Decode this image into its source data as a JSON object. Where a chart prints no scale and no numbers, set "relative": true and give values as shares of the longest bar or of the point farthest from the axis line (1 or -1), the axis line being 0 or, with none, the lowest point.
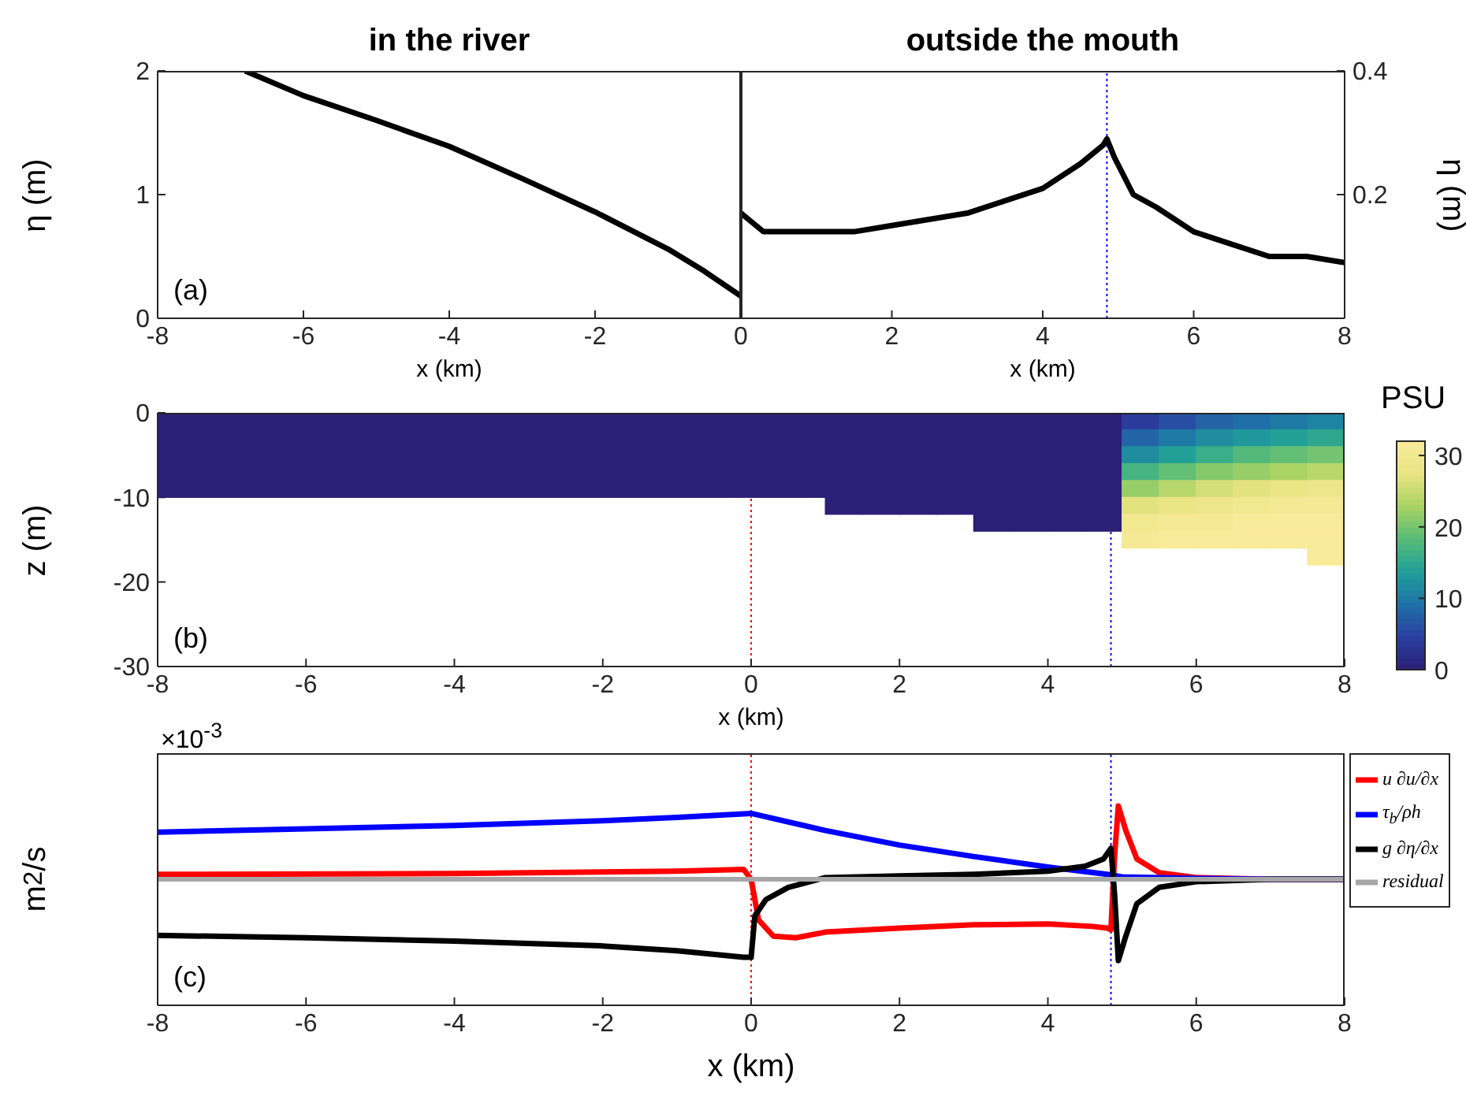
{
  "chart_data": [
    {
      "type": "line",
      "title": "in the river",
      "xlabel": "x (km)",
      "ylabel": "η (m)",
      "annotations": [
        "(a)"
      ],
      "xlim": [
        -8,
        0
      ],
      "xticks": [
        -8,
        -6,
        -4,
        -2
      ],
      "ylim": [
        0,
        2
      ],
      "yticks": [
        0,
        1,
        2
      ],
      "series": [
        {
          "color": "#000000",
          "x": [
            -6.8,
            -6,
            -5,
            -4,
            -3,
            -2,
            -1,
            -0.5,
            0
          ],
          "values": [
            2,
            1.8,
            1.6,
            1.39,
            1.13,
            0.86,
            0.56,
            0.38,
            0.18
          ]
        }
      ]
    },
    {
      "type": "line",
      "title": "outside the mouth",
      "xlabel": "x (km)",
      "y2label": "η (m)",
      "xlim": [
        0,
        8
      ],
      "xticks": [
        0,
        2,
        4,
        6,
        8
      ],
      "y2lim": [
        0,
        0.4
      ],
      "y2ticks": [
        0.2,
        0.4
      ],
      "ref_lines": [
        {
          "axis": "x",
          "value": 4.85,
          "color": "#0000ff",
          "line_style": "dotted"
        }
      ],
      "series": [
        {
          "color": "#000000",
          "axis": "y2",
          "x": [
            0,
            0.3,
            0.8,
            1.5,
            2,
            3,
            4,
            4.5,
            4.8,
            4.85,
            4.95,
            5.2,
            5.5,
            6,
            6.5,
            7,
            7.5,
            8
          ],
          "values": [
            0.17,
            0.14,
            0.14,
            0.14,
            0.15,
            0.17,
            0.21,
            0.25,
            0.28,
            0.29,
            0.26,
            0.2,
            0.18,
            0.14,
            0.12,
            0.1,
            0.1,
            0.09
          ]
        }
      ]
    },
    {
      "type": "scatter",
      "marker": "square",
      "xlabel": "x (km)",
      "ylabel": "z (m)",
      "clabel": "PSU",
      "annotations": [
        "(b)"
      ],
      "xlim": [
        -8,
        8
      ],
      "xticks": [
        -8,
        -6,
        -4,
        -2,
        0,
        2,
        4,
        6,
        8
      ],
      "ylim": [
        -30,
        0
      ],
      "yticks": [
        -30,
        -20,
        -10,
        0
      ],
      "clim": [
        0,
        32
      ],
      "cticks": [
        0,
        10,
        20,
        30
      ],
      "ref_lines": [
        {
          "axis": "x",
          "value": 0,
          "color": "#ff0000",
          "line_style": "dotted"
        },
        {
          "axis": "x",
          "value": 4.85,
          "color": "#0000ff",
          "line_style": "dotted"
        }
      ],
      "x": [
        -7.75,
        -7.75,
        -7.75,
        -7.75,
        -7.75,
        -7.25,
        -7.25,
        -7.25,
        -7.25,
        -7.25,
        -6.75,
        -6.75,
        -6.75,
        -6.75,
        -6.75,
        -6.25,
        -6.25,
        -6.25,
        -6.25,
        -6.25,
        -5.75,
        -5.75,
        -5.75,
        -5.75,
        -5.75,
        -5.25,
        -5.25,
        -5.25,
        -5.25,
        -5.25,
        -4.75,
        -4.75,
        -4.75,
        -4.75,
        -4.75,
        -4.25,
        -4.25,
        -4.25,
        -4.25,
        -4.25,
        -3.75,
        -3.75,
        -3.75,
        -3.75,
        -3.75,
        -3.25,
        -3.25,
        -3.25,
        -3.25,
        -3.25,
        -2.75,
        -2.75,
        -2.75,
        -2.75,
        -2.75,
        -2.25,
        -2.25,
        -2.25,
        -2.25,
        -2.25,
        -1.75,
        -1.75,
        -1.75,
        -1.75,
        -1.75,
        -1.25,
        -1.25,
        -1.25,
        -1.25,
        -1.25,
        -0.75,
        -0.75,
        -0.75,
        -0.75,
        -0.75,
        -0.25,
        -0.25,
        -0.25,
        -0.25,
        -0.25,
        0.25,
        0.25,
        0.25,
        0.25,
        0.25,
        0.75,
        0.75,
        0.75,
        0.75,
        0.75,
        1.25,
        1.25,
        1.25,
        1.25,
        1.25,
        1.25,
        1.75,
        1.75,
        1.75,
        1.75,
        1.75,
        1.75,
        2.25,
        2.25,
        2.25,
        2.25,
        2.25,
        2.25,
        2.75,
        2.75,
        2.75,
        2.75,
        2.75,
        2.75,
        3.25,
        3.25,
        3.25,
        3.25,
        3.25,
        3.25,
        3.25,
        3.75,
        3.75,
        3.75,
        3.75,
        3.75,
        3.75,
        3.75,
        4.25,
        4.25,
        4.25,
        4.25,
        4.25,
        4.25,
        4.25,
        4.75,
        4.75,
        4.75,
        4.75,
        4.75,
        4.75,
        4.75,
        5.25,
        5.25,
        5.25,
        5.25,
        5.25,
        5.25,
        5.25,
        5.25,
        5.75,
        5.75,
        5.75,
        5.75,
        5.75,
        5.75,
        5.75,
        5.75,
        6.25,
        6.25,
        6.25,
        6.25,
        6.25,
        6.25,
        6.25,
        6.25,
        6.75,
        6.75,
        6.75,
        6.75,
        6.75,
        6.75,
        6.75,
        6.75,
        7.25,
        7.25,
        7.25,
        7.25,
        7.25,
        7.25,
        7.25,
        7.25,
        7.75,
        7.75,
        7.75,
        7.75,
        7.75,
        7.75,
        7.75,
        7.75,
        7.75
      ],
      "values": [
        -1,
        -3,
        -5,
        -7,
        -9,
        -1,
        -3,
        -5,
        -7,
        -9,
        -1,
        -3,
        -5,
        -7,
        -9,
        -1,
        -3,
        -5,
        -7,
        -9,
        -1,
        -3,
        -5,
        -7,
        -9,
        -1,
        -3,
        -5,
        -7,
        -9,
        -1,
        -3,
        -5,
        -7,
        -9,
        -1,
        -3,
        -5,
        -7,
        -9,
        -1,
        -3,
        -5,
        -7,
        -9,
        -1,
        -3,
        -5,
        -7,
        -9,
        -1,
        -3,
        -5,
        -7,
        -9,
        -1,
        -3,
        -5,
        -7,
        -9,
        -1,
        -3,
        -5,
        -7,
        -9,
        -1,
        -3,
        -5,
        -7,
        -9,
        -1,
        -3,
        -5,
        -7,
        -9,
        -1,
        -3,
        -5,
        -7,
        -9,
        -1,
        -3,
        -5,
        -7,
        -9,
        -1,
        -3,
        -5,
        -7,
        -9,
        -1,
        -3,
        -5,
        -7,
        -9,
        -11,
        -1,
        -3,
        -5,
        -7,
        -9,
        -11,
        -1,
        -3,
        -5,
        -7,
        -9,
        -11,
        -1,
        -3,
        -5,
        -7,
        -9,
        -11,
        -1,
        -3,
        -5,
        -7,
        -9,
        -11,
        -13,
        -1,
        -3,
        -5,
        -7,
        -9,
        -11,
        -13,
        -1,
        -3,
        -5,
        -7,
        -9,
        -11,
        -13,
        -1,
        -3,
        -5,
        -7,
        -9,
        -11,
        -13,
        -1,
        -3,
        -5,
        -7,
        -9,
        -11,
        -13,
        -15,
        -1,
        -3,
        -5,
        -7,
        -9,
        -11,
        -13,
        -15,
        -1,
        -3,
        -5,
        -7,
        -9,
        -11,
        -13,
        -15,
        -1,
        -3,
        -5,
        -7,
        -9,
        -11,
        -13,
        -15,
        -1,
        -3,
        -5,
        -7,
        -9,
        -11,
        -13,
        -15,
        -1,
        -3,
        -5,
        -7,
        -9,
        -11,
        -13,
        -15,
        -17
      ],
      "cvalues": [
        0,
        0,
        0,
        0,
        0,
        0,
        0,
        0,
        0,
        0,
        0,
        0,
        0,
        0,
        0,
        0,
        0,
        0,
        0,
        0,
        0,
        0,
        0,
        0,
        0,
        0,
        0,
        0,
        0,
        0,
        0,
        0,
        0,
        0,
        0,
        0,
        0,
        0,
        0,
        0,
        0,
        0,
        0,
        0,
        0,
        0,
        0,
        0,
        0,
        0,
        0,
        0,
        0,
        0,
        0,
        0,
        0,
        0,
        0,
        0,
        0,
        0,
        0,
        0,
        0,
        0,
        0,
        0,
        0,
        0,
        0,
        0,
        0,
        0,
        0,
        0,
        0,
        0,
        0,
        0,
        0,
        0,
        0,
        0,
        0,
        0,
        0,
        0,
        0,
        0,
        0,
        0,
        0,
        0,
        0,
        0,
        0,
        0,
        0,
        0,
        0,
        0,
        0,
        0,
        0,
        0,
        0,
        0,
        0,
        0,
        0,
        0,
        0,
        0,
        0,
        0,
        0,
        0,
        0,
        0,
        0,
        0,
        0,
        0,
        0,
        0,
        0,
        0,
        0,
        0,
        0,
        0,
        0,
        0,
        0,
        0,
        0,
        0,
        0,
        0,
        0,
        0,
        4,
        8,
        12,
        17,
        22,
        27,
        30,
        31,
        6,
        10,
        14,
        19,
        24,
        28,
        31,
        32,
        8,
        12,
        16,
        21,
        26,
        29,
        31,
        32,
        9,
        13,
        18,
        22,
        27,
        30,
        32,
        32,
        10,
        14,
        19,
        23,
        28,
        31,
        32,
        32,
        11,
        15,
        20,
        24,
        29,
        31,
        32,
        32,
        32
      ]
    },
    {
      "type": "line",
      "relative": true,
      "xlabel": "x (km)",
      "ylabel": "m$^{2}$/s",
      "annotations": [
        "(c)",
        "×10$^{-3}$"
      ],
      "xlim": [
        -8,
        8
      ],
      "xticks": [
        -8,
        -6,
        -4,
        -2,
        0,
        2,
        4,
        6,
        8
      ],
      "legend": "right",
      "ref_lines": [
        {
          "axis": "x",
          "value": 0,
          "color": "#ff0000",
          "line_style": "dotted"
        },
        {
          "axis": "x",
          "value": 4.85,
          "color": "#0000ff",
          "line_style": "dotted"
        }
      ],
      "series": [
        {
          "name": "u ∂u/∂x",
          "color": "#ff0000",
          "x": [
            -8,
            -4,
            -1,
            -0.1,
            0,
            0.1,
            0.3,
            0.6,
            1,
            2,
            3,
            4,
            4.6,
            4.8,
            4.85,
            4.9,
            4.95,
            5.05,
            5.2,
            5.5,
            6,
            7,
            8
          ],
          "values": [
            0.06,
            0.07,
            0.1,
            0.12,
            0,
            -0.5,
            -0.7,
            -0.72,
            -0.65,
            -0.6,
            -0.56,
            -0.55,
            -0.58,
            -0.6,
            -0.62,
            0.3,
            0.9,
            0.6,
            0.25,
            0.08,
            0.02,
            0,
            0
          ]
        },
        {
          "name": "τ$_{b}$/ρh",
          "color": "#0000ff",
          "x": [
            -8,
            -6,
            -4,
            -2,
            -1,
            0,
            1,
            2,
            3,
            4,
            4.8,
            5,
            6,
            7,
            8
          ],
          "values": [
            0.58,
            0.62,
            0.66,
            0.72,
            0.76,
            0.81,
            0.6,
            0.42,
            0.28,
            0.15,
            0.06,
            0.03,
            0.01,
            0,
            0
          ]
        },
        {
          "name": "g ∂η/∂x",
          "color": "#000000",
          "x": [
            -8,
            -6,
            -4,
            -2,
            -1,
            -0.1,
            0,
            0.05,
            0.2,
            0.5,
            1,
            2,
            3,
            4,
            4.5,
            4.75,
            4.85,
            4.9,
            4.95,
            5.05,
            5.2,
            5.5,
            6,
            7,
            8
          ],
          "values": [
            -0.69,
            -0.72,
            -0.76,
            -0.82,
            -0.88,
            -0.96,
            -0.96,
            -0.45,
            -0.25,
            -0.1,
            0.02,
            0.04,
            0.06,
            0.1,
            0.16,
            0.25,
            0.38,
            -0.2,
            -1,
            -0.7,
            -0.3,
            -0.1,
            -0.03,
            0,
            0
          ]
        },
        {
          "name": "residual",
          "color": "#a6a6a6",
          "x": [
            -8,
            8
          ],
          "values": [
            0,
            0
          ]
        }
      ]
    }
  ]
}
